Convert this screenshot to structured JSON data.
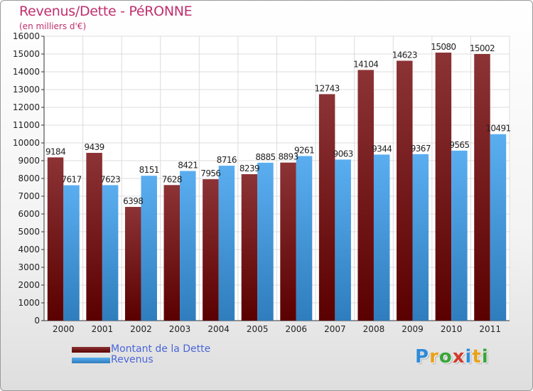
{
  "header": {
    "title": "Revenus/Dette - PéRONNE",
    "subtitle": "(en milliers d'€)"
  },
  "chart_data": {
    "type": "bar",
    "title": "Revenus/Dette - PéRONNE",
    "ylabel": "(en milliers d'€)",
    "xlabel": "",
    "categories": [
      "2000",
      "2001",
      "2002",
      "2003",
      "2004",
      "2005",
      "2006",
      "2007",
      "2008",
      "2009",
      "2010",
      "2011"
    ],
    "series": [
      {
        "name": "Montant de la Dette",
        "color": "#7a1f22",
        "values": [
          9184,
          9439,
          6398,
          7628,
          7956,
          8239,
          8893,
          12743,
          14104,
          14623,
          15080,
          15002
        ]
      },
      {
        "name": "Revenus",
        "color": "#4d9de0",
        "values": [
          7617,
          7623,
          8151,
          8421,
          8716,
          8885,
          9261,
          9063,
          9344,
          9367,
          9565,
          10491
        ]
      }
    ],
    "ylim": [
      0,
      16000
    ],
    "yticks": [
      "0",
      "1000",
      "2000",
      "3000",
      "4000",
      "5000",
      "6000",
      "7000",
      "8000",
      "9000",
      "10000",
      "11000",
      "12000",
      "13000",
      "14000",
      "15000",
      "16000"
    ],
    "grid": true,
    "legend": "bottom-left"
  },
  "logo": {
    "letters": [
      "P",
      "r",
      "o",
      "x",
      "i",
      "t",
      "i"
    ],
    "colors": [
      "#2e8bd8",
      "#e8a21b",
      "#3aa53a",
      "#d23b2b",
      "#2e8bd8",
      "#e8a21b",
      "#3aa53a"
    ]
  }
}
